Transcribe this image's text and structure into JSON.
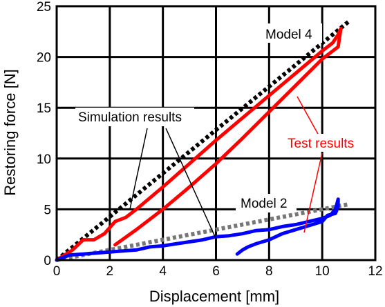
{
  "chart_data": {
    "type": "line",
    "xlabel": "Displacement [mm]",
    "ylabel": "Restoring force [N]",
    "xlim": [
      0,
      12
    ],
    "ylim": [
      0,
      25
    ],
    "xticks": [
      0,
      2,
      4,
      6,
      8,
      10,
      12
    ],
    "yticks": [
      0,
      5,
      10,
      15,
      20,
      25
    ],
    "grid": true,
    "series": [
      {
        "role": "simulation",
        "color": "#000000",
        "x": [
          0,
          11
        ],
        "y": [
          0,
          23.5
        ]
      },
      {
        "role": "test",
        "color": "#ff0000",
        "x": [
          0,
          0.3,
          0.6,
          1.0,
          1.4,
          1.8,
          2.2,
          2.6,
          3,
          4,
          5,
          6,
          7,
          8,
          9,
          10,
          10.4,
          10.6,
          10.7,
          10.6,
          10.4,
          10,
          9,
          8,
          7,
          6,
          5,
          4,
          3,
          2.2
        ],
        "y": [
          0,
          0.5,
          1.0,
          2.0,
          2.0,
          2.6,
          3.8,
          4.2,
          5.0,
          7.2,
          9.5,
          11.8,
          14.0,
          16.2,
          18.4,
          20.6,
          21.4,
          22.2,
          22.8,
          21.0,
          20.6,
          19.8,
          17.2,
          14.6,
          12.0,
          9.5,
          7.2,
          5.0,
          3.0,
          1.5
        ]
      },
      {
        "role": "simulation",
        "color": "#777777",
        "x": [
          0,
          11
        ],
        "y": [
          0,
          5.5
        ]
      },
      {
        "role": "test",
        "color": "#0000ff",
        "x": [
          0,
          0.5,
          1,
          1.5,
          2,
          2.5,
          3,
          3.5,
          4,
          4.5,
          5,
          5.5,
          6,
          6.5,
          7,
          7.5,
          8,
          8.5,
          9,
          9.5,
          10,
          10.3,
          10.5,
          10.6,
          10.6,
          10.5,
          10.2,
          10,
          9.5,
          9,
          8.5,
          8,
          7.5,
          7.2,
          7,
          6.8
        ],
        "y": [
          0,
          0.5,
          0.6,
          0.7,
          0.8,
          0.9,
          1.0,
          1.3,
          1.4,
          1.6,
          1.8,
          2.0,
          2.3,
          2.4,
          2.6,
          2.9,
          3.0,
          3.3,
          3.5,
          3.8,
          4.1,
          4.4,
          5.0,
          6.0,
          5.3,
          4.6,
          4.4,
          3.8,
          3.4,
          3.0,
          2.6,
          2.0,
          1.6,
          1.3,
          1.0,
          0.6
        ]
      }
    ],
    "annotations": {
      "model4": "Model 4",
      "model2": "Model 2",
      "simulation": "Simulation results",
      "test": "Test results"
    }
  }
}
